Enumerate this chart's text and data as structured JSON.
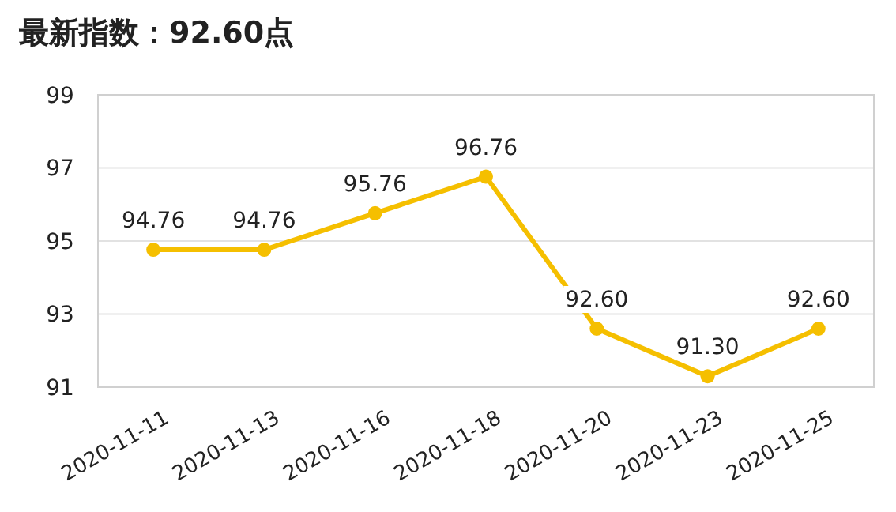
{
  "chart_data": {
    "type": "line",
    "title": "最新指数：92.60点",
    "categories": [
      "2020-11-11",
      "2020-11-13",
      "2020-11-16",
      "2020-11-18",
      "2020-11-20",
      "2020-11-23",
      "2020-11-25"
    ],
    "series": [
      {
        "color": "#f5bf00",
        "values": [
          94.76,
          94.76,
          95.76,
          96.76,
          92.6,
          91.3,
          92.6
        ],
        "value_labels": [
          "94.76",
          "94.76",
          "95.76",
          "96.76",
          "92.60",
          "91.30",
          "92.60"
        ]
      }
    ],
    "ylim": [
      91,
      99
    ],
    "yticks": [
      91,
      93,
      95,
      97,
      99
    ],
    "grid": "y",
    "marker": "circle",
    "line_style": "solid"
  }
}
